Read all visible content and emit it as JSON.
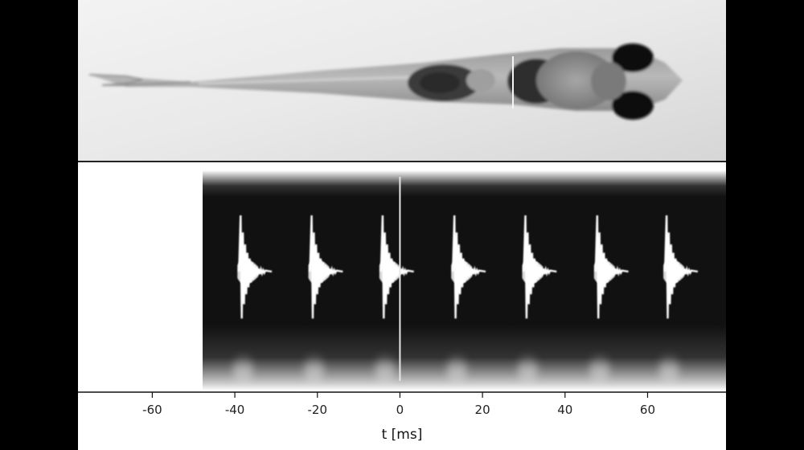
{
  "media": {
    "top_panel": "zebrafish-larva-dorsal-view",
    "colors": {
      "side_bars": "#000000",
      "signal": "#ffffff",
      "background_dark": "#111111",
      "background_light": "#ffffff"
    }
  },
  "chart_data": {
    "type": "line",
    "title": "",
    "xlabel": "t [ms]",
    "ylabel": "",
    "xlim": [
      -78,
      79
    ],
    "x_ticks": [
      -60,
      -40,
      -20,
      0,
      20,
      40,
      60
    ],
    "x_tick_labels": [
      "-60",
      "-40",
      "-20",
      "0",
      "20",
      "40",
      "60"
    ],
    "signal_start_ms": -47.8,
    "cursor_ms": 0,
    "pulse_times_ms": [
      -38.6,
      -21.4,
      -4.2,
      13.2,
      30.4,
      47.8,
      64.6
    ],
    "pulse_amplitude": [
      1.0,
      1.0,
      1.0,
      1.0,
      1.0,
      1.0,
      1.0
    ],
    "grid": false,
    "legend": "none"
  }
}
